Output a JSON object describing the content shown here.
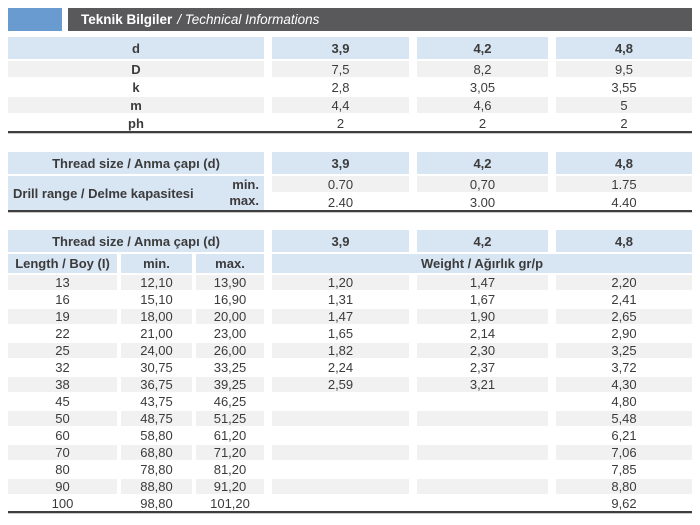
{
  "header": {
    "title_bold": "Teknik Bilgiler",
    "title_italic": "/ Technical Informations"
  },
  "colors": {
    "accent_blue": "#6a9bd0",
    "bar_gray": "#59595b",
    "header_light_blue": "#d8e5f3",
    "stripe_gray": "#f1f1f2",
    "border_dark": "#3e3e3e",
    "text_dark": "#3b3b3b"
  },
  "dimensions_table": {
    "header": {
      "label": "d",
      "values": [
        "3,9",
        "4,2",
        "4,8"
      ]
    },
    "rows": [
      {
        "label": "D",
        "values": [
          "7,5",
          "8,2",
          "9,5"
        ]
      },
      {
        "label": "k",
        "values": [
          "2,8",
          "3,05",
          "3,55"
        ]
      },
      {
        "label": "m",
        "values": [
          "4,4",
          "4,6",
          "5"
        ]
      },
      {
        "label": "ph",
        "values": [
          "2",
          "2",
          "2"
        ]
      }
    ]
  },
  "drill_table": {
    "header": {
      "label": "Thread size / Anma çapı (d)",
      "values": [
        "3,9",
        "4,2",
        "4,8"
      ]
    },
    "row_label": "Drill range / Delme kapasitesi",
    "rows": [
      {
        "sub": "min.",
        "values": [
          "0.70",
          "0,70",
          "1.75"
        ]
      },
      {
        "sub": "max.",
        "values": [
          "2.40",
          "3.00",
          "4.40"
        ]
      }
    ]
  },
  "length_table": {
    "header": {
      "label": "Thread size / Anma çapı (d)",
      "values": [
        "3,9",
        "4,2",
        "4,8"
      ]
    },
    "subheader": {
      "length": "Length / Boy (I)",
      "min": "min.",
      "max": "max.",
      "weight": "Weight / Ağırlık gr/p"
    },
    "rows": [
      {
        "length": "13",
        "min": "12,10",
        "max": "13,90",
        "weights": [
          "1,20",
          "1,47",
          "2,20"
        ]
      },
      {
        "length": "16",
        "min": "15,10",
        "max": "16,90",
        "weights": [
          "1,31",
          "1,67",
          "2,41"
        ]
      },
      {
        "length": "19",
        "min": "18,00",
        "max": "20,00",
        "weights": [
          "1,47",
          "1,90",
          "2,65"
        ]
      },
      {
        "length": "22",
        "min": "21,00",
        "max": "23,00",
        "weights": [
          "1,65",
          "2,14",
          "2,90"
        ]
      },
      {
        "length": "25",
        "min": "24,00",
        "max": "26,00",
        "weights": [
          "1,82",
          "2,30",
          "3,25"
        ]
      },
      {
        "length": "32",
        "min": "30,75",
        "max": "33,25",
        "weights": [
          "2,24",
          "2,37",
          "3,72"
        ]
      },
      {
        "length": "38",
        "min": "36,75",
        "max": "39,25",
        "weights": [
          "2,59",
          "3,21",
          "4,30"
        ]
      },
      {
        "length": "45",
        "min": "43,75",
        "max": "46,25",
        "weights": [
          "",
          "",
          "4,80"
        ]
      },
      {
        "length": "50",
        "min": "48,75",
        "max": "51,25",
        "weights": [
          "",
          "",
          "5,48"
        ]
      },
      {
        "length": "60",
        "min": "58,80",
        "max": "61,20",
        "weights": [
          "",
          "",
          "6,21"
        ]
      },
      {
        "length": "70",
        "min": "68,80",
        "max": "71,20",
        "weights": [
          "",
          "",
          "7,06"
        ]
      },
      {
        "length": "80",
        "min": "78,80",
        "max": "81,20",
        "weights": [
          "",
          "",
          "7,85"
        ]
      },
      {
        "length": "90",
        "min": "88,80",
        "max": "91,20",
        "weights": [
          "",
          "",
          "8,80"
        ]
      },
      {
        "length": "100",
        "min": "98,80",
        "max": "101,20",
        "weights": [
          "",
          "",
          "9,62"
        ]
      }
    ]
  }
}
